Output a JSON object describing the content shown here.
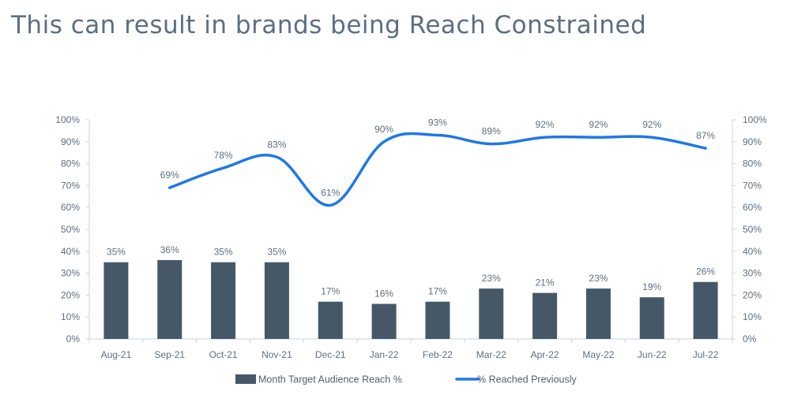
{
  "slide": {
    "title": "This can result in brands being Reach Constrained"
  },
  "chart_data": {
    "type": "bar",
    "categories": [
      "Aug-21",
      "Sep-21",
      "Oct-21",
      "Nov-21",
      "Dec-21",
      "Jan-22",
      "Feb-22",
      "Mar-22",
      "Apr-22",
      "May-22",
      "Jun-22",
      "Jul-22"
    ],
    "series": [
      {
        "name": "Month Target Audience Reach %",
        "type": "bar",
        "axis": "left",
        "color": "#465868",
        "values": [
          35,
          36,
          35,
          35,
          17,
          16,
          17,
          23,
          21,
          23,
          19,
          26
        ],
        "labels": [
          "35%",
          "36%",
          "35%",
          "35%",
          "17%",
          "16%",
          "17%",
          "23%",
          "21%",
          "23%",
          "19%",
          "26%"
        ]
      },
      {
        "name": "% Reached Previously",
        "type": "line",
        "axis": "right",
        "color": "#1f78e6",
        "values": [
          null,
          69,
          78,
          83,
          61,
          90,
          93,
          89,
          92,
          92,
          92,
          87
        ],
        "labels": [
          "",
          "69%",
          "78%",
          "83%",
          "61%",
          "90%",
          "93%",
          "89%",
          "92%",
          "92%",
          "92%",
          "87%"
        ]
      }
    ],
    "yticks_left": [
      "0%",
      "10%",
      "20%",
      "30%",
      "40%",
      "50%",
      "60%",
      "70%",
      "80%",
      "90%",
      "100%"
    ],
    "yticks_right": [
      "0%",
      "10%",
      "20%",
      "30%",
      "40%",
      "50%",
      "60%",
      "70%",
      "80%",
      "90%",
      "100%"
    ],
    "ylim": [
      0,
      100
    ],
    "y2lim": [
      0,
      100
    ],
    "grid": false,
    "legend_position": "bottom",
    "colors": {
      "axis": "#c9d3dc",
      "tick_text": "#5f6f7f"
    }
  }
}
